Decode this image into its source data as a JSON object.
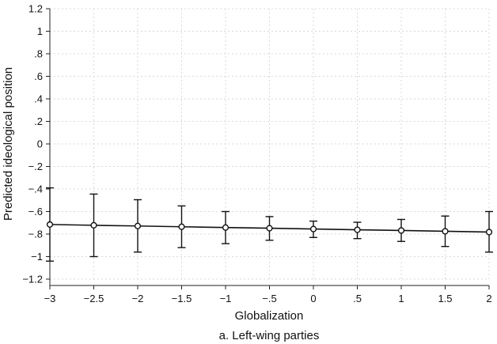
{
  "chart_data": {
    "type": "line",
    "xlabel": "Globalization",
    "ylabel": "Predicted ideological position",
    "caption": "a. Left-wing parties",
    "xlim": [
      -3,
      2
    ],
    "ylim": [
      -1.2,
      1.2
    ],
    "xticks": [
      -3,
      -2.5,
      -2,
      -1.5,
      -1,
      -0.5,
      0,
      0.5,
      1,
      1.5,
      2
    ],
    "xtick_labels": [
      "−3",
      "−2.5",
      "−2",
      "−1.5",
      "−1",
      "−.5",
      "0",
      ".5",
      "1",
      "1.5",
      "2"
    ],
    "yticks": [
      1.2,
      1,
      0.8,
      0.6,
      0.4,
      0.2,
      0,
      -0.2,
      -0.4,
      -0.6,
      -0.8,
      -1,
      -1.2
    ],
    "ytick_labels": [
      "1.2",
      "1",
      ".8",
      ".6",
      ".4",
      ".2",
      "0",
      "−.2",
      "−.4",
      "−.6",
      "−.8",
      "−1",
      "−1.2"
    ],
    "grid": true,
    "x": [
      -3,
      -2.5,
      -2,
      -1.5,
      -1,
      -0.5,
      0,
      0.5,
      1,
      1.5,
      2
    ],
    "y": [
      -0.715,
      -0.722,
      -0.728,
      -0.735,
      -0.742,
      -0.748,
      -0.755,
      -0.762,
      -0.768,
      -0.775,
      -0.782
    ],
    "ci_low": [
      -1.04,
      -1.0,
      -0.96,
      -0.92,
      -0.885,
      -0.855,
      -0.83,
      -0.84,
      -0.865,
      -0.91,
      -0.96
    ],
    "ci_high": [
      -0.39,
      -0.445,
      -0.495,
      -0.55,
      -0.6,
      -0.645,
      -0.685,
      -0.695,
      -0.67,
      -0.64,
      -0.6
    ]
  }
}
